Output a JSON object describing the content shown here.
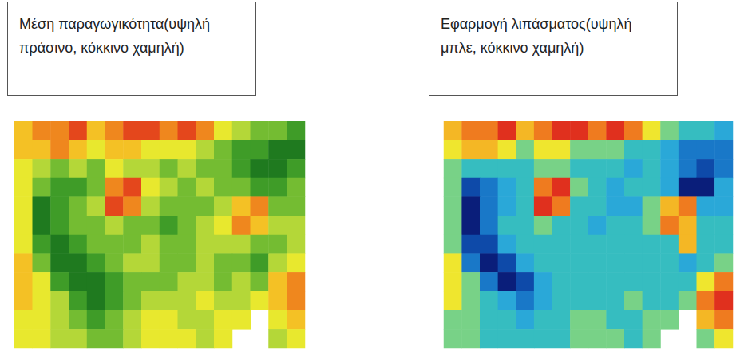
{
  "chart_data": [
    {
      "type": "heatmap",
      "title": "Μέση παραγωγικότητα(υψηλή πράσινο, κόκκινο χαμηλή)",
      "colors": [
        "#e4471c",
        "#f4a11f",
        "#f3ec2c",
        "#a9d33a",
        "#4caa2c",
        "#1f7a1f"
      ],
      "tick_labels": false,
      "cells": [
        [
          4,
          3,
          3,
          2,
          4,
          3,
          2,
          2,
          3,
          2,
          3,
          5,
          6,
          7,
          7,
          8
        ],
        [
          4,
          4,
          3,
          4,
          5,
          4,
          4,
          5,
          5,
          5,
          6,
          7,
          8,
          8,
          9,
          9
        ],
        [
          5,
          6,
          7,
          6,
          7,
          5,
          6,
          6,
          7,
          6,
          7,
          7,
          8,
          9,
          9,
          8
        ],
        [
          5,
          7,
          8,
          8,
          7,
          3,
          2,
          5,
          6,
          7,
          6,
          7,
          7,
          8,
          8,
          7
        ],
        [
          5,
          9,
          8,
          7,
          6,
          2,
          3,
          6,
          7,
          7,
          7,
          6,
          4,
          3,
          7,
          7
        ],
        [
          5,
          9,
          8,
          7,
          7,
          6,
          7,
          7,
          8,
          7,
          6,
          5,
          3,
          4,
          6,
          6
        ],
        [
          5,
          8,
          9,
          8,
          7,
          7,
          7,
          6,
          7,
          7,
          6,
          6,
          6,
          7,
          7,
          6
        ],
        [
          4,
          7,
          9,
          9,
          8,
          7,
          6,
          6,
          7,
          7,
          6,
          7,
          7,
          8,
          6,
          5
        ],
        [
          4,
          5,
          8,
          9,
          9,
          8,
          7,
          7,
          7,
          6,
          6,
          7,
          6,
          7,
          4,
          3
        ],
        [
          4,
          5,
          6,
          8,
          9,
          8,
          7,
          6,
          6,
          6,
          5,
          6,
          6,
          5,
          4,
          3
        ],
        [
          5,
          5,
          6,
          7,
          8,
          7,
          6,
          5,
          5,
          6,
          6,
          5,
          5,
          null,
          5,
          4
        ],
        [
          5,
          5,
          6,
          6,
          7,
          7,
          6,
          5,
          5,
          5,
          6,
          5,
          null,
          null,
          6,
          5
        ]
      ]
    },
    {
      "type": "heatmap",
      "title": "Εφαρμογή λιπάσματος(υψηλή μπλε, κόκκινο χαμηλή)",
      "colors": [
        "#e0301e",
        "#f6a020",
        "#efe62e",
        "#3cc8b4",
        "#2aa8d8",
        "#1060c0",
        "#0a1e7a"
      ],
      "tick_labels": false,
      "cells": [
        [
          3,
          2,
          2,
          1,
          3,
          2,
          1,
          1,
          2,
          1,
          2,
          4,
          5,
          6,
          6,
          7
        ],
        [
          4,
          3,
          3,
          4,
          5,
          4,
          4,
          5,
          5,
          5,
          6,
          6,
          7,
          8,
          8,
          8
        ],
        [
          5,
          6,
          6,
          6,
          6,
          5,
          5,
          6,
          6,
          6,
          7,
          6,
          7,
          8,
          9,
          8
        ],
        [
          5,
          9,
          8,
          7,
          6,
          2,
          1,
          5,
          6,
          7,
          6,
          6,
          7,
          10,
          10,
          7
        ],
        [
          5,
          10,
          8,
          7,
          6,
          1,
          2,
          6,
          6,
          7,
          7,
          5,
          3,
          2,
          7,
          7
        ],
        [
          5,
          10,
          8,
          6,
          6,
          5,
          6,
          6,
          7,
          6,
          6,
          5,
          2,
          3,
          6,
          6
        ],
        [
          5,
          9,
          9,
          7,
          6,
          6,
          6,
          6,
          6,
          6,
          6,
          6,
          6,
          3,
          6,
          6
        ],
        [
          4,
          8,
          10,
          9,
          7,
          6,
          6,
          6,
          6,
          6,
          6,
          6,
          6,
          7,
          6,
          5
        ],
        [
          4,
          5,
          8,
          10,
          9,
          7,
          6,
          6,
          6,
          6,
          6,
          6,
          6,
          6,
          4,
          2
        ],
        [
          4,
          5,
          6,
          7,
          8,
          7,
          6,
          6,
          6,
          6,
          5,
          6,
          6,
          5,
          2,
          1
        ],
        [
          5,
          5,
          6,
          6,
          7,
          6,
          6,
          5,
          5,
          6,
          6,
          5,
          5,
          null,
          3,
          2
        ],
        [
          5,
          5,
          6,
          6,
          6,
          6,
          6,
          5,
          5,
          5,
          6,
          5,
          null,
          null,
          5,
          4
        ]
      ]
    }
  ]
}
